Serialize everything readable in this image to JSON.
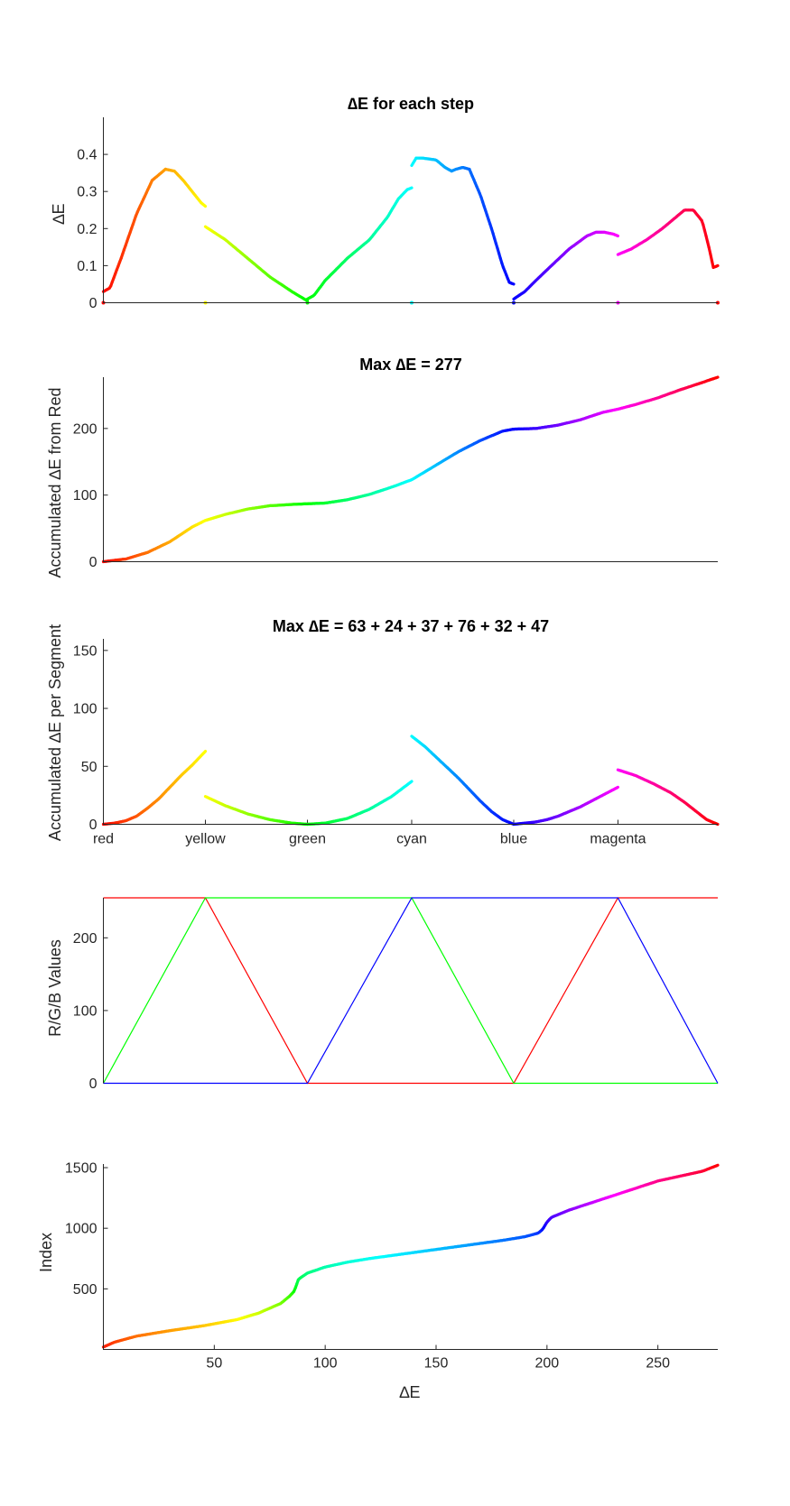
{
  "figure": {
    "background": "#ffffff"
  },
  "chart_data": [
    {
      "id": "step",
      "type": "scatter",
      "title": "∆E for each step",
      "ylabel": "∆E",
      "xlim": [
        0,
        277
      ],
      "ylim": [
        0,
        0.5
      ],
      "yticks": [
        0,
        0.1,
        0.2,
        0.3,
        0.4
      ],
      "ytick_labels": [
        "0",
        "0.1",
        "0.2",
        "0.3",
        "0.4"
      ],
      "colored_by": "hue",
      "x_segment_boundaries": [
        0,
        46,
        92,
        139,
        185,
        232,
        277
      ],
      "series": [
        {
          "name": "red-yellow",
          "x": [
            0,
            3,
            8,
            15,
            22,
            28,
            32,
            36,
            40,
            44,
            46
          ],
          "y": [
            0.03,
            0.04,
            0.12,
            0.24,
            0.33,
            0.36,
            0.355,
            0.33,
            0.3,
            0.27,
            0.26
          ]
        },
        {
          "name": "yellow-green",
          "x": [
            46,
            55,
            65,
            75,
            85,
            92
          ],
          "y": [
            0.205,
            0.17,
            0.12,
            0.07,
            0.03,
            0.005
          ]
        },
        {
          "name": "green-cyan",
          "x": [
            92,
            95,
            100,
            110,
            120,
            128,
            133,
            137,
            139
          ],
          "y": [
            0.01,
            0.02,
            0.06,
            0.12,
            0.17,
            0.23,
            0.28,
            0.305,
            0.31
          ]
        },
        {
          "name": "cyan-blue",
          "x": [
            139,
            141,
            144,
            150,
            154,
            157,
            159,
            162,
            165,
            170,
            175,
            180,
            183,
            185
          ],
          "y": [
            0.37,
            0.39,
            0.39,
            0.385,
            0.365,
            0.355,
            0.36,
            0.365,
            0.36,
            0.29,
            0.2,
            0.1,
            0.055,
            0.05
          ]
        },
        {
          "name": "blue-magenta",
          "x": [
            185,
            190,
            195,
            202,
            210,
            218,
            222,
            226,
            230,
            232
          ],
          "y": [
            0.01,
            0.03,
            0.06,
            0.1,
            0.145,
            0.18,
            0.19,
            0.19,
            0.185,
            0.18
          ]
        },
        {
          "name": "magenta-red",
          "x": [
            232,
            238,
            245,
            252,
            258,
            262,
            266,
            270,
            273,
            275,
            277
          ],
          "y": [
            0.13,
            0.145,
            0.17,
            0.2,
            0.23,
            0.25,
            0.25,
            0.22,
            0.15,
            0.095,
            0.1
          ]
        }
      ],
      "markers_at_zero": [
        0,
        46,
        92,
        139,
        185,
        232,
        277
      ]
    },
    {
      "id": "cumulative",
      "type": "line",
      "title": "Max ∆E = 277",
      "ylabel": "Accumulated ∆E from Red",
      "xlim": [
        0,
        277
      ],
      "ylim": [
        0,
        277
      ],
      "yticks": [
        0,
        100,
        200
      ],
      "ytick_labels": [
        "0",
        "100",
        "200"
      ],
      "colored_by": "hue",
      "series": [
        {
          "name": "accumulated",
          "x": [
            0,
            10,
            20,
            30,
            40,
            46,
            55,
            65,
            75,
            85,
            92,
            100,
            110,
            120,
            130,
            139,
            150,
            160,
            170,
            180,
            185,
            195,
            205,
            215,
            225,
            232,
            240,
            250,
            260,
            270,
            277
          ],
          "y": [
            0,
            4,
            14,
            30,
            52,
            62,
            71,
            79,
            84,
            86,
            87,
            88,
            93,
            101,
            112,
            123,
            145,
            165,
            182,
            196,
            199,
            200,
            205,
            213,
            224,
            229,
            236,
            246,
            258,
            269,
            277
          ]
        }
      ]
    },
    {
      "id": "segment",
      "type": "scatter",
      "title": "Max ∆E = 63 + 24 + 37 + 76 + 32 + 47",
      "ylabel": "Accumulated ∆E per Segment",
      "xlim": [
        0,
        277
      ],
      "ylim": [
        0,
        160
      ],
      "yticks": [
        0,
        50,
        100,
        150
      ],
      "ytick_labels": [
        "0",
        "50",
        "100",
        "150"
      ],
      "colored_by": "hue",
      "xtick_positions": [
        0,
        46,
        92,
        139,
        185,
        232
      ],
      "xtick_labels": [
        "red",
        "yellow",
        "green",
        "cyan",
        "blue",
        "magenta"
      ],
      "series": [
        {
          "name": "red-yellow",
          "x": [
            0,
            5,
            10,
            15,
            20,
            25,
            30,
            35,
            40,
            46
          ],
          "y": [
            0,
            1,
            3,
            7,
            14,
            22,
            32,
            42,
            51,
            63
          ]
        },
        {
          "name": "yellow-green",
          "x": [
            46,
            55,
            65,
            75,
            85,
            92
          ],
          "y": [
            24,
            16,
            9,
            4,
            1,
            0
          ]
        },
        {
          "name": "green-cyan",
          "x": [
            92,
            100,
            110,
            120,
            130,
            139
          ],
          "y": [
            0,
            1,
            5,
            13,
            24,
            37
          ]
        },
        {
          "name": "cyan-blue",
          "x": [
            139,
            145,
            150,
            155,
            160,
            165,
            170,
            175,
            180,
            185
          ],
          "y": [
            76,
            67,
            58,
            49,
            40,
            30,
            20,
            11,
            4,
            0
          ]
        },
        {
          "name": "blue-magenta",
          "x": [
            185,
            190,
            195,
            200,
            205,
            210,
            215,
            220,
            225,
            232
          ],
          "y": [
            0,
            1,
            2,
            4,
            7,
            11,
            15,
            20,
            25,
            32
          ]
        },
        {
          "name": "magenta-red",
          "x": [
            232,
            240,
            248,
            256,
            262,
            268,
            272,
            277
          ],
          "y": [
            47,
            42,
            35,
            27,
            19,
            10,
            4,
            0
          ]
        }
      ]
    },
    {
      "id": "rgb",
      "type": "line",
      "ylabel": "R/G/B Values",
      "xlim": [
        0,
        277
      ],
      "ylim": [
        0,
        255
      ],
      "yticks": [
        0,
        100,
        200
      ],
      "ytick_labels": [
        "0",
        "100",
        "200"
      ],
      "series": [
        {
          "name": "R",
          "color": "#ff0000",
          "x": [
            0,
            46,
            92,
            185,
            232,
            277
          ],
          "y": [
            255,
            255,
            0,
            0,
            255,
            255
          ]
        },
        {
          "name": "G",
          "color": "#00ff00",
          "x": [
            0,
            46,
            139,
            185,
            277
          ],
          "y": [
            0,
            255,
            255,
            0,
            0
          ]
        },
        {
          "name": "B",
          "color": "#0000ff",
          "x": [
            0,
            92,
            139,
            232,
            277
          ],
          "y": [
            0,
            0,
            255,
            255,
            0
          ]
        }
      ]
    },
    {
      "id": "index",
      "type": "line",
      "ylabel": "Index",
      "xlabel": "∆E",
      "xlim": [
        0,
        277
      ],
      "ylim": [
        0,
        1530
      ],
      "yticks": [
        500,
        1000,
        1500
      ],
      "ytick_labels": [
        "500",
        "1000",
        "1500"
      ],
      "xticks": [
        50,
        100,
        150,
        200,
        250
      ],
      "xtick_labels": [
        "50",
        "100",
        "150",
        "200",
        "250"
      ],
      "colored_by": "index",
      "series": [
        {
          "name": "index",
          "x": [
            0,
            5,
            15,
            30,
            45,
            60,
            70,
            80,
            84,
            86,
            88,
            92,
            100,
            110,
            120,
            130,
            140,
            150,
            160,
            170,
            180,
            190,
            196,
            198,
            200,
            202,
            210,
            220,
            230,
            240,
            250,
            260,
            270,
            277
          ],
          "y": [
            20,
            60,
            110,
            155,
            195,
            245,
            300,
            380,
            440,
            480,
            580,
            630,
            680,
            720,
            750,
            775,
            800,
            825,
            850,
            875,
            900,
            930,
            960,
            990,
            1050,
            1090,
            1150,
            1210,
            1270,
            1330,
            1390,
            1430,
            1470,
            1520
          ]
        }
      ]
    }
  ]
}
